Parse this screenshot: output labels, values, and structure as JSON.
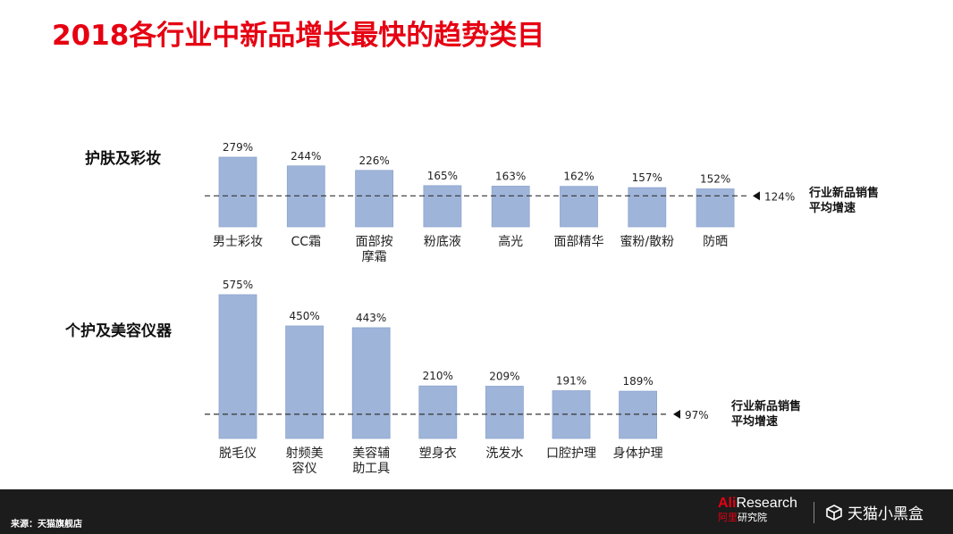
{
  "title": "2018各行业中新品增长最快的趋势类目",
  "colors": {
    "title": "#e60012",
    "bar": "#9fb4d9",
    "bar_stroke": "#8ea5cf",
    "footer_bg": "#1c1c1c"
  },
  "chart_data": [
    {
      "type": "bar",
      "title": "护肤及彩妆",
      "categories": [
        "男士彩妆",
        "CC霜",
        "面部按摩霜",
        "粉底液",
        "高光",
        "面部精华",
        "蜜粉/散粉",
        "防晒"
      ],
      "category_lines": [
        [
          "男士彩妆"
        ],
        [
          "CC霜"
        ],
        [
          "面部按",
          "摩霜"
        ],
        [
          "粉底液"
        ],
        [
          "高光"
        ],
        [
          "面部精华"
        ],
        [
          "蜜粉/散粉"
        ],
        [
          "防晒"
        ]
      ],
      "values": [
        279,
        244,
        226,
        165,
        163,
        162,
        157,
        152
      ],
      "value_labels": [
        "279%",
        "244%",
        "226%",
        "165%",
        "163%",
        "162%",
        "157%",
        "152%"
      ],
      "reference_line": {
        "value": 124,
        "label": "124%",
        "name_lines": [
          "行业新品销售",
          "平均增速"
        ]
      }
    },
    {
      "type": "bar",
      "title": "个护及美容仪器",
      "categories": [
        "脱毛仪",
        "射频美容仪",
        "美容辅助工具",
        "塑身衣",
        "洗发水",
        "口腔护理",
        "身体护理"
      ],
      "category_lines": [
        [
          "脱毛仪"
        ],
        [
          "射频美",
          "容仪"
        ],
        [
          "美容辅",
          "助工具"
        ],
        [
          "塑身衣"
        ],
        [
          "洗发水"
        ],
        [
          "口腔护理"
        ],
        [
          "身体护理"
        ]
      ],
      "values": [
        575,
        450,
        443,
        210,
        209,
        191,
        189
      ],
      "value_labels": [
        "575%",
        "450%",
        "443%",
        "210%",
        "209%",
        "191%",
        "189%"
      ],
      "reference_line": {
        "value": 97,
        "label": "97%",
        "name_lines": [
          "行业新品销售",
          "平均增速"
        ]
      }
    }
  ],
  "footer": {
    "source": "来源：天猫旗舰店",
    "ali_prefix": "Ali",
    "ali_suffix": "Research",
    "ali_sub_red": "阿里",
    "ali_sub": "研究院",
    "tmall_logo_text": "天猫小黑盒",
    "box_icon": "box-icon"
  }
}
